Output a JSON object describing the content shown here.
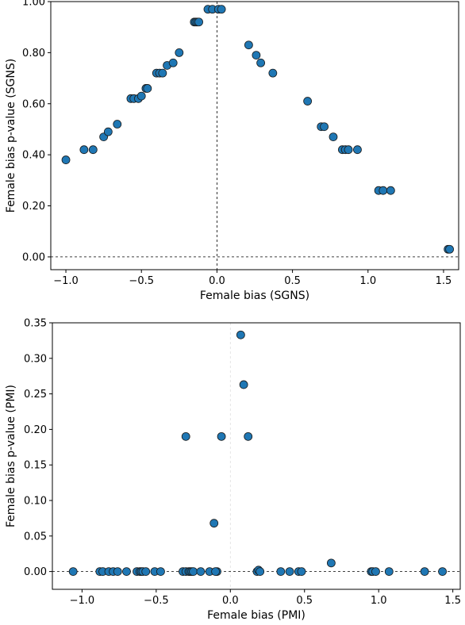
{
  "chart_data": [
    {
      "type": "scatter",
      "xlabel": "Female bias (SGNS)",
      "ylabel": "Female bias p-value (SGNS)",
      "xlim": [
        -1.1,
        1.6
      ],
      "ylim": [
        -0.05,
        1.0
      ],
      "xticks": [
        -1.0,
        -0.5,
        0.0,
        0.5,
        1.0,
        1.5
      ],
      "xtick_labels": [
        "−1.0",
        "−0.5",
        "0.0",
        "0.5",
        "1.0",
        "1.5"
      ],
      "yticks": [
        0.0,
        0.2,
        0.4,
        0.6,
        0.8,
        1.0
      ],
      "ytick_labels": [
        "0.00",
        "0.20",
        "0.40",
        "0.60",
        "0.80",
        "1.00"
      ],
      "grid": false,
      "reference_lines": {
        "x": 0,
        "y": 0
      },
      "marker_color": "#1f77b4",
      "points": {
        "x": [
          -1.0,
          -0.88,
          -0.82,
          -0.75,
          -0.72,
          -0.66,
          -0.57,
          -0.55,
          -0.52,
          -0.5,
          -0.47,
          -0.46,
          -0.4,
          -0.38,
          -0.36,
          -0.33,
          -0.29,
          -0.25,
          -0.15,
          -0.14,
          -0.13,
          -0.12,
          -0.06,
          -0.03,
          0.01,
          0.03,
          0.21,
          0.26,
          0.29,
          0.37,
          0.6,
          0.69,
          0.71,
          0.77,
          0.83,
          0.85,
          0.87,
          0.93,
          1.07,
          1.1,
          1.15,
          1.53,
          1.54
        ],
        "y": [
          0.38,
          0.42,
          0.42,
          0.47,
          0.49,
          0.52,
          0.62,
          0.62,
          0.62,
          0.63,
          0.66,
          0.66,
          0.72,
          0.72,
          0.72,
          0.75,
          0.76,
          0.8,
          0.92,
          0.92,
          0.92,
          0.92,
          0.97,
          0.97,
          0.97,
          0.97,
          0.83,
          0.79,
          0.76,
          0.72,
          0.61,
          0.51,
          0.51,
          0.47,
          0.42,
          0.42,
          0.42,
          0.42,
          0.26,
          0.26,
          0.26,
          0.03,
          0.03
        ]
      }
    },
    {
      "type": "scatter",
      "xlabel": "Female bias (PMI)",
      "ylabel": "Female bias p-value (PMI)",
      "xlim": [
        -1.2,
        1.55
      ],
      "ylim": [
        -0.025,
        0.35
      ],
      "xticks": [
        -1.0,
        -0.5,
        0.0,
        0.5,
        1.0,
        1.5
      ],
      "xtick_labels": [
        "−1.0",
        "−0.5",
        "0.0",
        "0.5",
        "1.0",
        "1.5"
      ],
      "yticks": [
        0.0,
        0.05,
        0.1,
        0.15,
        0.2,
        0.25,
        0.3,
        0.35
      ],
      "ytick_labels": [
        "0.00",
        "0.05",
        "0.10",
        "0.15",
        "0.20",
        "0.25",
        "0.30",
        "0.35"
      ],
      "grid": false,
      "reference_lines": {
        "x": 0,
        "y": 0
      },
      "marker_color": "#1f77b4",
      "points": {
        "x": [
          -1.06,
          -0.88,
          -0.86,
          -0.82,
          -0.79,
          -0.76,
          -0.7,
          -0.63,
          -0.61,
          -0.6,
          -0.59,
          -0.57,
          -0.51,
          -0.47,
          -0.32,
          -0.3,
          -0.28,
          -0.27,
          -0.26,
          -0.25,
          -0.2,
          -0.14,
          -0.11,
          -0.09,
          -0.06,
          0.07,
          0.09,
          0.12,
          0.18,
          0.19,
          0.2,
          0.34,
          0.4,
          0.46,
          0.48,
          0.68,
          0.95,
          0.96,
          0.98,
          1.07,
          1.31,
          1.43,
          -0.3,
          -0.1
        ],
        "y": [
          0.0,
          0.0,
          0.0,
          0.0,
          0.0,
          0.0,
          0.0,
          0.0,
          0.0,
          0.0,
          0.0,
          0.0,
          0.0,
          0.0,
          0.0,
          0.0,
          0.0,
          0.0,
          0.0,
          0.0,
          0.0,
          0.0,
          0.068,
          0.0,
          0.19,
          0.333,
          0.263,
          0.19,
          0.0,
          0.002,
          0.0,
          0.0,
          0.0,
          0.0,
          0.0,
          0.012,
          0.0,
          0.0,
          0.0,
          0.0,
          0.0,
          0.0,
          0.19,
          0.0
        ]
      }
    }
  ]
}
